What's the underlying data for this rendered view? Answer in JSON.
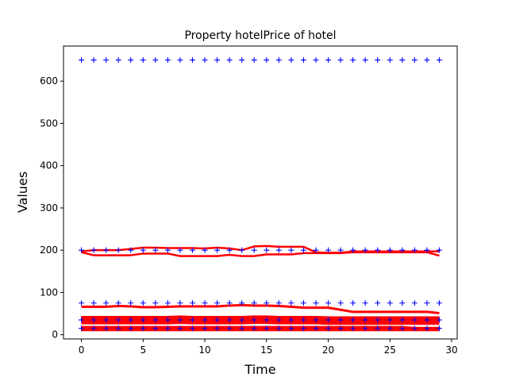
{
  "chart_data": {
    "type": "line",
    "title": "Property hotelPrice of hotel",
    "xlabel": "Time",
    "ylabel": "Values",
    "xlim": [
      -1.45,
      30.45
    ],
    "ylim": [
      -10,
      683
    ],
    "x_ticks": [
      0,
      5,
      10,
      15,
      20,
      25,
      30
    ],
    "y_ticks": [
      0,
      100,
      200,
      300,
      400,
      500,
      600
    ],
    "grid": false,
    "legend": "none",
    "marker_series": [
      {
        "marker": "+",
        "color": "#0000ff",
        "x_start": 0,
        "x_end": 29,
        "values": [
          650
        ]
      },
      {
        "marker": "+",
        "color": "#0000ff",
        "x_start": 0,
        "x_end": 29,
        "values": [
          200
        ]
      },
      {
        "marker": "+",
        "color": "#0000ff",
        "x_start": 0,
        "x_end": 29,
        "values": [
          75
        ]
      },
      {
        "marker": "+",
        "color": "#0000ff",
        "x_start": 0,
        "x_end": 29,
        "values": [
          35
        ]
      },
      {
        "marker": "+",
        "color": "#0000ff",
        "x_start": 0,
        "x_end": 29,
        "values": [
          15
        ]
      }
    ],
    "line_series": [
      {
        "color": "#ff0000",
        "width": 2.5,
        "values": [
          197,
          200,
          200,
          200,
          203,
          206,
          206,
          205,
          205,
          205,
          204,
          206,
          204,
          200,
          209,
          210,
          208,
          208,
          208,
          195,
          194,
          194,
          197,
          197,
          197,
          197,
          197,
          197,
          197,
          197
        ]
      },
      {
        "color": "#ff0000",
        "width": 2.5,
        "values": [
          195,
          188,
          188,
          188,
          188,
          192,
          192,
          192,
          186,
          186,
          186,
          186,
          189,
          186,
          186,
          190,
          190,
          190,
          193,
          193,
          193,
          193,
          195,
          195,
          195,
          195,
          195,
          195,
          195,
          187
        ]
      },
      {
        "color": "#ff0000",
        "width": 3,
        "values": [
          66,
          66,
          66,
          68,
          67,
          65,
          65,
          66,
          67,
          67,
          67,
          67,
          69,
          70,
          69,
          69,
          68,
          66,
          64,
          64,
          64,
          59,
          54,
          54,
          54,
          54,
          54,
          54,
          54,
          51
        ]
      },
      {
        "color": "#ff0000",
        "width": 7,
        "values": [
          38,
          38,
          38,
          38,
          38,
          38,
          38,
          38,
          39,
          38,
          38,
          38,
          38,
          38,
          39,
          39,
          38,
          38,
          38,
          38,
          37,
          37,
          37,
          37,
          37,
          37,
          37,
          37,
          37,
          37
        ]
      },
      {
        "color": "#ff0000",
        "width": 7,
        "values": [
          31,
          31,
          31,
          31,
          31,
          31,
          31,
          31,
          32,
          31,
          31,
          31,
          31,
          31,
          32,
          32,
          31,
          31,
          31,
          31,
          30,
          30,
          30,
          30,
          30,
          30,
          30,
          30,
          30,
          30
        ]
      },
      {
        "color": "#ff0000",
        "width": 5,
        "values": [
          16,
          16,
          16,
          16,
          16,
          16,
          16,
          16,
          16,
          16,
          16,
          16,
          16,
          16,
          16,
          16,
          16,
          16,
          16,
          16,
          16,
          16,
          16,
          16,
          16,
          16,
          16,
          14,
          14,
          14
        ]
      },
      {
        "color": "#ff0000",
        "width": 4,
        "values": [
          12,
          12,
          12,
          12,
          12,
          12,
          12,
          12,
          12,
          12,
          12,
          12,
          12,
          12,
          12,
          12,
          12,
          12,
          12,
          12,
          12,
          12,
          12,
          12,
          12,
          12,
          12,
          12,
          12,
          12
        ]
      }
    ]
  }
}
